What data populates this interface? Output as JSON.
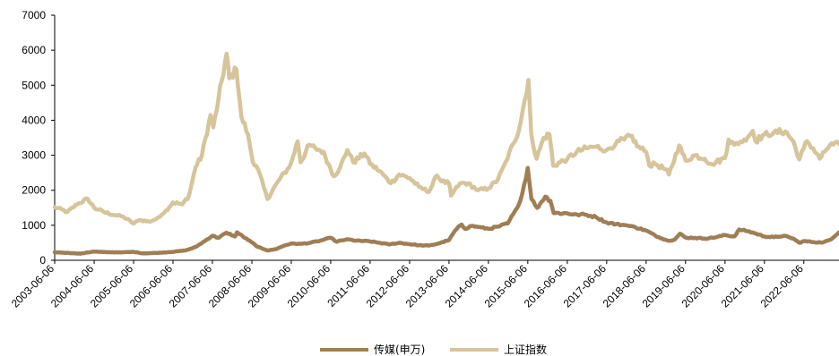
{
  "chart_data": {
    "type": "line",
    "title": "",
    "xlabel": "",
    "ylabel": "",
    "ylim": [
      0,
      7000
    ],
    "y_ticks": [
      0,
      1000,
      2000,
      3000,
      4000,
      5000,
      6000,
      7000
    ],
    "x_range": [
      "2003-06-06",
      "2023-04-28"
    ],
    "x_tick_labels": [
      "2003-06-06",
      "2004-06-06",
      "2005-06-06",
      "2006-06-06",
      "2007-06-06",
      "2008-06-06",
      "2009-06-06",
      "2010-06-06",
      "2011-06-06",
      "2012-06-06",
      "2013-06-06",
      "2014-06-06",
      "2015-06-06",
      "2016-06-06",
      "2017-06-06",
      "2018-06-06",
      "2019-06-06",
      "2020-06-06",
      "2021-06-06",
      "2022-06-06"
    ],
    "grid": false,
    "legend_position": "bottom",
    "series": [
      {
        "name": "传媒(申万)",
        "color": "#a07e55",
        "points": [
          [
            "2003-06-06",
            230
          ],
          [
            "2003-10-15",
            210
          ],
          [
            "2004-02-01",
            190
          ],
          [
            "2004-06-01",
            250
          ],
          [
            "2004-10-01",
            230
          ],
          [
            "2005-03-01",
            230
          ],
          [
            "2005-06-06",
            240
          ],
          [
            "2005-09-01",
            200
          ],
          [
            "2006-01-01",
            210
          ],
          [
            "2006-06-01",
            240
          ],
          [
            "2006-10-01",
            280
          ],
          [
            "2007-01-01",
            380
          ],
          [
            "2007-04-01",
            560
          ],
          [
            "2007-06-06",
            700
          ],
          [
            "2007-08-01",
            640
          ],
          [
            "2007-10-15",
            790
          ],
          [
            "2008-01-01",
            680
          ],
          [
            "2008-01-20",
            800
          ],
          [
            "2008-03-15",
            680
          ],
          [
            "2008-06-01",
            520
          ],
          [
            "2008-08-01",
            380
          ],
          [
            "2008-11-01",
            280
          ],
          [
            "2009-01-15",
            320
          ],
          [
            "2009-04-01",
            420
          ],
          [
            "2009-06-06",
            480
          ],
          [
            "2009-09-01",
            470
          ],
          [
            "2009-12-01",
            500
          ],
          [
            "2010-03-01",
            560
          ],
          [
            "2010-06-06",
            640
          ],
          [
            "2010-08-01",
            530
          ],
          [
            "2010-11-01",
            600
          ],
          [
            "2011-02-01",
            560
          ],
          [
            "2011-06-06",
            540
          ],
          [
            "2011-09-01",
            500
          ],
          [
            "2011-12-01",
            450
          ],
          [
            "2012-03-01",
            500
          ],
          [
            "2012-06-06",
            460
          ],
          [
            "2012-09-01",
            430
          ],
          [
            "2012-12-01",
            420
          ],
          [
            "2013-03-01",
            480
          ],
          [
            "2013-06-06",
            580
          ],
          [
            "2013-08-01",
            850
          ],
          [
            "2013-10-01",
            1020
          ],
          [
            "2013-11-01",
            900
          ],
          [
            "2014-01-01",
            980
          ],
          [
            "2014-03-01",
            950
          ],
          [
            "2014-06-06",
            900
          ],
          [
            "2014-09-01",
            960
          ],
          [
            "2014-12-01",
            1050
          ],
          [
            "2015-03-01",
            1500
          ],
          [
            "2015-04-15",
            1900
          ],
          [
            "2015-06-06",
            2640
          ],
          [
            "2015-07-10",
            1750
          ],
          [
            "2015-09-01",
            1500
          ],
          [
            "2015-11-15",
            1820
          ],
          [
            "2016-01-01",
            1700
          ],
          [
            "2016-02-01",
            1350
          ],
          [
            "2016-06-06",
            1340
          ],
          [
            "2016-09-01",
            1310
          ],
          [
            "2016-12-01",
            1300
          ],
          [
            "2017-03-01",
            1230
          ],
          [
            "2017-06-06",
            1080
          ],
          [
            "2017-09-01",
            1030
          ],
          [
            "2017-12-01",
            1000
          ],
          [
            "2018-03-01",
            940
          ],
          [
            "2018-06-06",
            850
          ],
          [
            "2018-09-01",
            700
          ],
          [
            "2018-11-01",
            620
          ],
          [
            "2019-01-01",
            560
          ],
          [
            "2019-03-01",
            600
          ],
          [
            "2019-04-15",
            760
          ],
          [
            "2019-06-06",
            650
          ],
          [
            "2019-09-01",
            640
          ],
          [
            "2019-12-01",
            620
          ],
          [
            "2020-03-01",
            650
          ],
          [
            "2020-06-06",
            720
          ],
          [
            "2020-09-01",
            680
          ],
          [
            "2020-10-15",
            880
          ],
          [
            "2021-01-01",
            830
          ],
          [
            "2021-03-01",
            780
          ],
          [
            "2021-06-06",
            680
          ],
          [
            "2021-09-01",
            660
          ],
          [
            "2021-12-01",
            700
          ],
          [
            "2022-03-01",
            620
          ],
          [
            "2022-04-25",
            500
          ],
          [
            "2022-06-06",
            550
          ],
          [
            "2022-09-01",
            520
          ],
          [
            "2022-12-01",
            510
          ],
          [
            "2023-02-01",
            580
          ],
          [
            "2023-04-28",
            800
          ]
        ]
      },
      {
        "name": "上证指数",
        "color": "#d6c49b",
        "points": [
          [
            "2003-06-06",
            1520
          ],
          [
            "2003-10-01",
            1380
          ],
          [
            "2004-01-01",
            1600
          ],
          [
            "2004-04-06",
            1760
          ],
          [
            "2004-06-06",
            1500
          ],
          [
            "2004-09-01",
            1380
          ],
          [
            "2004-12-01",
            1300
          ],
          [
            "2005-03-01",
            1250
          ],
          [
            "2005-06-06",
            1050
          ],
          [
            "2005-08-01",
            1150
          ],
          [
            "2005-11-01",
            1100
          ],
          [
            "2006-01-01",
            1180
          ],
          [
            "2006-04-01",
            1420
          ],
          [
            "2006-06-06",
            1650
          ],
          [
            "2006-09-01",
            1600
          ],
          [
            "2006-11-01",
            1850
          ],
          [
            "2007-01-01",
            2650
          ],
          [
            "2007-03-01",
            3000
          ],
          [
            "2007-05-20",
            4150
          ],
          [
            "2007-06-15",
            3800
          ],
          [
            "2007-08-01",
            4600
          ],
          [
            "2007-10-16",
            5900
          ],
          [
            "2007-11-10",
            5200
          ],
          [
            "2008-01-15",
            5450
          ],
          [
            "2008-03-01",
            4100
          ],
          [
            "2008-05-01",
            3600
          ],
          [
            "2008-06-15",
            2800
          ],
          [
            "2008-08-01",
            2600
          ],
          [
            "2008-10-28",
            1750
          ],
          [
            "2008-12-15",
            2000
          ],
          [
            "2009-02-15",
            2300
          ],
          [
            "2009-05-01",
            2600
          ],
          [
            "2009-06-06",
            2800
          ],
          [
            "2009-08-04",
            3400
          ],
          [
            "2009-09-01",
            2800
          ],
          [
            "2009-11-20",
            3300
          ],
          [
            "2010-01-15",
            3200
          ],
          [
            "2010-04-01",
            3100
          ],
          [
            "2010-06-06",
            2600
          ],
          [
            "2010-07-05",
            2400
          ],
          [
            "2010-09-01",
            2650
          ],
          [
            "2010-11-08",
            3150
          ],
          [
            "2011-01-01",
            2800
          ],
          [
            "2011-04-15",
            3050
          ],
          [
            "2011-06-06",
            2750
          ],
          [
            "2011-09-01",
            2550
          ],
          [
            "2011-12-15",
            2200
          ],
          [
            "2012-03-01",
            2450
          ],
          [
            "2012-06-06",
            2350
          ],
          [
            "2012-09-01",
            2100
          ],
          [
            "2012-12-01",
            1950
          ],
          [
            "2013-02-15",
            2420
          ],
          [
            "2013-04-01",
            2250
          ],
          [
            "2013-06-06",
            2200
          ],
          [
            "2013-06-25",
            1850
          ],
          [
            "2013-09-15",
            2200
          ],
          [
            "2013-12-01",
            2200
          ],
          [
            "2014-03-01",
            2000
          ],
          [
            "2014-06-06",
            2050
          ],
          [
            "2014-09-01",
            2300
          ],
          [
            "2014-12-01",
            2900
          ],
          [
            "2015-01-15",
            3300
          ],
          [
            "2015-03-15",
            3700
          ],
          [
            "2015-06-12",
            5150
          ],
          [
            "2015-07-08",
            3600
          ],
          [
            "2015-08-26",
            2900
          ],
          [
            "2015-11-01",
            3500
          ],
          [
            "2015-12-23",
            3600
          ],
          [
            "2016-01-28",
            2700
          ],
          [
            "2016-06-06",
            2900
          ],
          [
            "2016-09-01",
            3100
          ],
          [
            "2016-12-01",
            3200
          ],
          [
            "2017-03-01",
            3250
          ],
          [
            "2017-06-06",
            3150
          ],
          [
            "2017-09-01",
            3350
          ],
          [
            "2017-11-15",
            3450
          ],
          [
            "2018-01-26",
            3550
          ],
          [
            "2018-03-15",
            3250
          ],
          [
            "2018-06-06",
            3100
          ],
          [
            "2018-07-06",
            2700
          ],
          [
            "2018-09-01",
            2750
          ],
          [
            "2018-12-01",
            2600
          ],
          [
            "2019-01-04",
            2450
          ],
          [
            "2019-04-08",
            3280
          ],
          [
            "2019-06-06",
            2850
          ],
          [
            "2019-09-01",
            3000
          ],
          [
            "2019-12-01",
            2900
          ],
          [
            "2020-02-03",
            2750
          ],
          [
            "2020-03-15",
            2800
          ],
          [
            "2020-06-06",
            2920
          ],
          [
            "2020-07-09",
            3450
          ],
          [
            "2020-09-01",
            3300
          ],
          [
            "2020-12-01",
            3450
          ],
          [
            "2021-02-18",
            3700
          ],
          [
            "2021-03-15",
            3400
          ],
          [
            "2021-06-06",
            3600
          ],
          [
            "2021-09-01",
            3650
          ],
          [
            "2021-12-15",
            3680
          ],
          [
            "2022-03-01",
            3400
          ],
          [
            "2022-04-26",
            2880
          ],
          [
            "2022-06-06",
            3200
          ],
          [
            "2022-07-05",
            3400
          ],
          [
            "2022-09-01",
            3200
          ],
          [
            "2022-10-31",
            2900
          ],
          [
            "2022-12-15",
            3100
          ],
          [
            "2023-02-01",
            3280
          ],
          [
            "2023-04-28",
            3320
          ]
        ]
      }
    ]
  }
}
